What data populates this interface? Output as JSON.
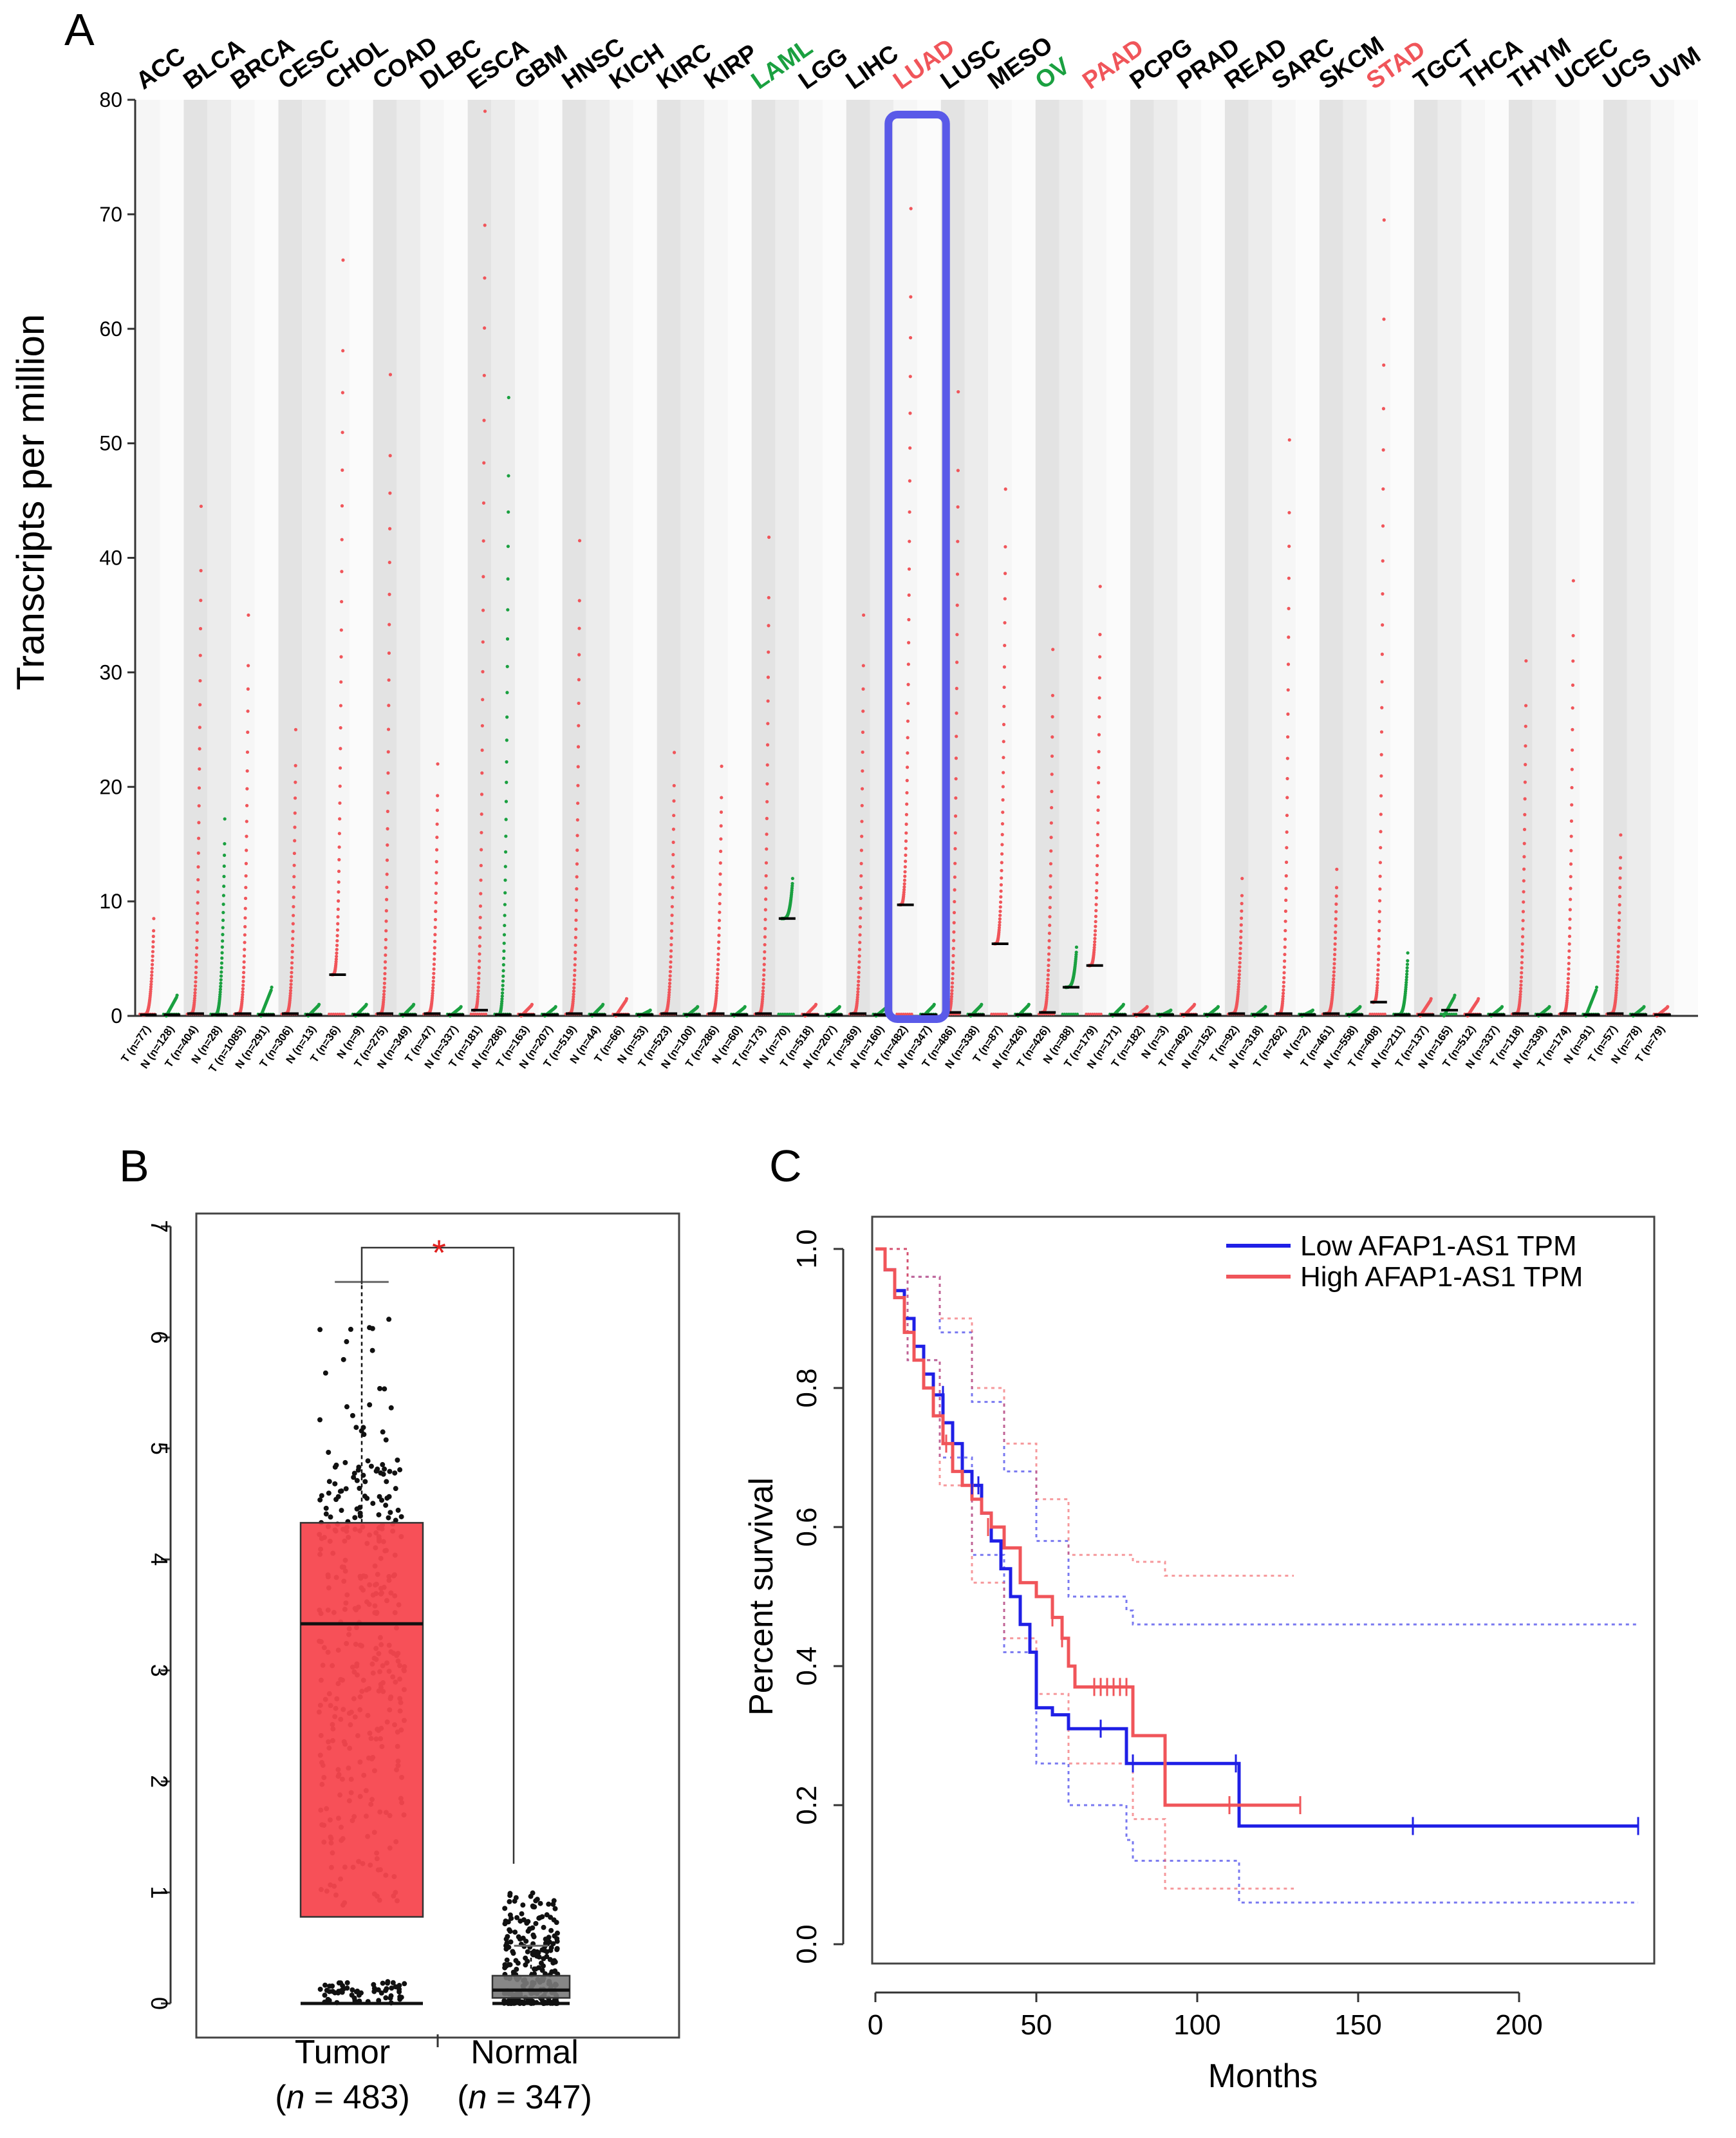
{
  "figure": {
    "panels": [
      {
        "letter": "A"
      },
      {
        "letter": "B"
      },
      {
        "letter": "C"
      }
    ]
  },
  "colors": {
    "red": "#f0555a",
    "green": "#1aa040",
    "blue": "#1f1fe6",
    "highlight": "#5a5ae8",
    "box_red": "#f7474f",
    "box_gray": "#7a7a7a",
    "gray_stripe": "#e3e3e3",
    "light_stripe": "#f6f6f6"
  },
  "chart_data": [
    {
      "panel": "A",
      "type": "scatter",
      "title": "",
      "ylabel": "Transcripts per million",
      "ylim": [
        0,
        80
      ],
      "yticks": [
        0,
        10,
        20,
        30,
        40,
        50,
        60,
        70,
        80
      ],
      "highlighted_cancer": "LUAD",
      "cancers": [
        {
          "name": "ACC",
          "color": "black",
          "groups": [
            "T (n=77)",
            "N (n=128)"
          ],
          "maxT": 8.5,
          "medT": 0.1,
          "maxN": 1.8,
          "medN": 0.1
        },
        {
          "name": "BLCA",
          "color": "black",
          "groups": [
            "T (n=404)",
            "N (n=28)"
          ],
          "maxT": 44.5,
          "medT": 0.2,
          "maxN": 17.2,
          "medN": 0.1
        },
        {
          "name": "BRCA",
          "color": "black",
          "groups": [
            "T (n=1085)",
            "N (n=291)"
          ],
          "maxT": 35.0,
          "medT": 0.2,
          "maxN": 2.5,
          "medN": 0.1
        },
        {
          "name": "CESC",
          "color": "black",
          "groups": [
            "T (n=306)",
            "N (n=13)"
          ],
          "maxT": 25.0,
          "medT": 0.2,
          "maxN": 1.0,
          "medN": 0.1
        },
        {
          "name": "CHOL",
          "color": "black",
          "groups": [
            "T (n=36)",
            "N (n=9)"
          ],
          "maxT": 66.0,
          "medT": 3.6,
          "maxN": 1.0,
          "medN": 0.1
        },
        {
          "name": "COAD",
          "color": "black",
          "groups": [
            "T (n=275)",
            "N (n=349)"
          ],
          "maxT": 56.0,
          "medT": 0.2,
          "maxN": 1.0,
          "medN": 0.1
        },
        {
          "name": "DLBC",
          "color": "black",
          "groups": [
            "T (n=47)",
            "N (n=337)"
          ],
          "maxT": 22.0,
          "medT": 0.2,
          "maxN": 0.8,
          "medN": 0.1
        },
        {
          "name": "ESCA",
          "color": "black",
          "groups": [
            "T (n=181)",
            "N (n=286)"
          ],
          "maxT": 79.0,
          "medT": 0.5,
          "maxN": 54.0,
          "medN": 0.1
        },
        {
          "name": "GBM",
          "color": "black",
          "groups": [
            "T (n=163)",
            "N (n=207)"
          ],
          "maxT": 1.0,
          "medT": 0.1,
          "maxN": 0.8,
          "medN": 0.1
        },
        {
          "name": "HNSC",
          "color": "black",
          "groups": [
            "T (n=519)",
            "N (n=44)"
          ],
          "maxT": 41.5,
          "medT": 0.2,
          "maxN": 1.0,
          "medN": 0.1
        },
        {
          "name": "KICH",
          "color": "black",
          "groups": [
            "T (n=66)",
            "N (n=53)"
          ],
          "maxT": 1.5,
          "medT": 0.1,
          "maxN": 0.5,
          "medN": 0.1
        },
        {
          "name": "KIRC",
          "color": "black",
          "groups": [
            "T (n=523)",
            "N (n=100)"
          ],
          "maxT": 23.0,
          "medT": 0.2,
          "maxN": 0.8,
          "medN": 0.1
        },
        {
          "name": "KIRP",
          "color": "black",
          "groups": [
            "T (n=286)",
            "N (n=60)"
          ],
          "maxT": 21.8,
          "medT": 0.2,
          "maxN": 0.8,
          "medN": 0.1
        },
        {
          "name": "LAML",
          "color": "green",
          "groups": [
            "T (n=173)",
            "N (n=70)"
          ],
          "maxT": 41.8,
          "medT": 0.2,
          "maxN": 12.0,
          "medN": 8.5
        },
        {
          "name": "LGG",
          "color": "black",
          "groups": [
            "T (n=518)",
            "N (n=207)"
          ],
          "maxT": 1.0,
          "medT": 0.1,
          "maxN": 0.8,
          "medN": 0.1
        },
        {
          "name": "LIHC",
          "color": "black",
          "groups": [
            "T (n=369)",
            "N (n=160)"
          ],
          "maxT": 35.0,
          "medT": 0.2,
          "maxN": 0.8,
          "medN": 0.1
        },
        {
          "name": "LUAD",
          "color": "red",
          "groups": [
            "T (n=482)",
            "N (n=347)"
          ],
          "maxT": 70.5,
          "medT": 9.7,
          "maxN": 1.0,
          "medN": 0.1
        },
        {
          "name": "LUSC",
          "color": "black",
          "groups": [
            "T (n=486)",
            "N (n=338)"
          ],
          "maxT": 54.5,
          "medT": 0.3,
          "maxN": 1.0,
          "medN": 0.1
        },
        {
          "name": "MESO",
          "color": "black",
          "groups": [
            "T (n=87)",
            "N (n=426)"
          ],
          "maxT": 46.0,
          "medT": 6.3,
          "maxN": 1.0,
          "medN": 0.1
        },
        {
          "name": "OV",
          "color": "green",
          "groups": [
            "T (n=426)",
            "N (n=88)"
          ],
          "maxT": 32.0,
          "medT": 0.3,
          "maxN": 6.0,
          "medN": 2.5
        },
        {
          "name": "PAAD",
          "color": "red",
          "groups": [
            "T (n=179)",
            "N (n=171)"
          ],
          "maxT": 37.5,
          "medT": 4.4,
          "maxN": 1.0,
          "medN": 0.1
        },
        {
          "name": "PCPG",
          "color": "black",
          "groups": [
            "T (n=182)",
            "N (n=3)"
          ],
          "maxT": 0.8,
          "medT": 0.1,
          "maxN": 0.5,
          "medN": 0.1
        },
        {
          "name": "PRAD",
          "color": "black",
          "groups": [
            "T (n=492)",
            "N (n=152)"
          ],
          "maxT": 1.0,
          "medT": 0.1,
          "maxN": 0.8,
          "medN": 0.1
        },
        {
          "name": "READ",
          "color": "black",
          "groups": [
            "T (n=92)",
            "N (n=318)"
          ],
          "maxT": 12.0,
          "medT": 0.2,
          "maxN": 0.8,
          "medN": 0.1
        },
        {
          "name": "SARC",
          "color": "black",
          "groups": [
            "T (n=262)",
            "N (n=2)"
          ],
          "maxT": 50.3,
          "medT": 0.2,
          "maxN": 0.5,
          "medN": 0.1
        },
        {
          "name": "SKCM",
          "color": "black",
          "groups": [
            "T (n=461)",
            "N (n=558)"
          ],
          "maxT": 12.8,
          "medT": 0.2,
          "maxN": 0.8,
          "medN": 0.1
        },
        {
          "name": "STAD",
          "color": "red",
          "groups": [
            "T (n=408)",
            "N (n=211)"
          ],
          "maxT": 69.5,
          "medT": 1.2,
          "maxN": 5.5,
          "medN": 0.1
        },
        {
          "name": "TGCT",
          "color": "black",
          "groups": [
            "T (n=137)",
            "N (n=165)"
          ],
          "maxT": 1.5,
          "medT": 0.1,
          "maxN": 1.8,
          "medN": 0.5
        },
        {
          "name": "THCA",
          "color": "black",
          "groups": [
            "T (n=512)",
            "N (n=337)"
          ],
          "maxT": 1.5,
          "medT": 0.1,
          "maxN": 0.8,
          "medN": 0.1
        },
        {
          "name": "THYM",
          "color": "black",
          "groups": [
            "T (n=118)",
            "N (n=339)"
          ],
          "maxT": 31.0,
          "medT": 0.2,
          "maxN": 0.8,
          "medN": 0.1
        },
        {
          "name": "UCEC",
          "color": "black",
          "groups": [
            "T (n=174)",
            "N (n=91)"
          ],
          "maxT": 38.0,
          "medT": 0.2,
          "maxN": 2.5,
          "medN": 0.1
        },
        {
          "name": "UCS",
          "color": "black",
          "groups": [
            "T (n=57)",
            "N (n=78)"
          ],
          "maxT": 15.8,
          "medT": 0.2,
          "maxN": 0.8,
          "medN": 0.1
        },
        {
          "name": "UVM",
          "color": "black",
          "groups": [
            "T (n=79)"
          ],
          "maxT": 0.8,
          "medT": 0.1
        }
      ]
    },
    {
      "panel": "B",
      "type": "box",
      "ylim": [
        0,
        7
      ],
      "yticks": [
        "0",
        "1",
        "2",
        "3",
        "4",
        "5",
        "6",
        "7"
      ],
      "significance": "*",
      "groups": [
        {
          "label": "Tumor",
          "n_prefix": "(",
          "n_italic": "n",
          "n_suffix": " = 483)",
          "q1": 0.78,
          "median": 3.42,
          "q3": 4.33,
          "whisker_low": 0.0,
          "whisker_high": 6.5,
          "max_point": 6.5
        },
        {
          "label": "Normal",
          "n_prefix": "(",
          "n_italic": "n",
          "n_suffix": " = 347)",
          "q1": 0.05,
          "median": 0.12,
          "q3": 0.25,
          "whisker_low": 0.0,
          "whisker_high": 0.52,
          "max_point": 1.0
        }
      ]
    },
    {
      "panel": "C",
      "type": "line",
      "xlabel": "Months",
      "ylabel": "Percent survival",
      "xlim": [
        0,
        240
      ],
      "ylim": [
        0,
        1.0
      ],
      "xticks": [
        "0",
        "50",
        "100",
        "150",
        "200"
      ],
      "yticks": [
        "0.0",
        "0.2",
        "0.4",
        "0.6",
        "0.8",
        "1.0"
      ],
      "legend": [
        {
          "label": "Low AFAP1-AS1 TPM",
          "color": "blue"
        },
        {
          "label": "High AFAP1-AS1 TPM",
          "color": "red"
        }
      ],
      "series": [
        {
          "name": "Low AFAP1-AS1 TPM",
          "color": "blue",
          "x": [
            0,
            3,
            6,
            9,
            12,
            15,
            18,
            21,
            24,
            27,
            30,
            33,
            36,
            39,
            42,
            45,
            48,
            50,
            55,
            60,
            78,
            80,
            113,
            120,
            170,
            237
          ],
          "y": [
            1.0,
            0.97,
            0.94,
            0.9,
            0.86,
            0.82,
            0.79,
            0.75,
            0.72,
            0.68,
            0.66,
            0.62,
            0.58,
            0.54,
            0.5,
            0.46,
            0.42,
            0.34,
            0.33,
            0.31,
            0.26,
            0.26,
            0.17,
            0.17,
            0.17,
            0.17
          ],
          "censors": [
            [
              21,
              0.79
            ],
            [
              30,
              0.66
            ],
            [
              32,
              0.66
            ],
            [
              70,
              0.31
            ],
            [
              80,
              0.26
            ],
            [
              112,
              0.26
            ],
            [
              167,
              0.17
            ],
            [
              237,
              0.17
            ]
          ],
          "ci_upper": [
            [
              0,
              1.0
            ],
            [
              10,
              0.96
            ],
            [
              20,
              0.88
            ],
            [
              30,
              0.78
            ],
            [
              40,
              0.68
            ],
            [
              50,
              0.58
            ],
            [
              60,
              0.5
            ],
            [
              78,
              0.48
            ],
            [
              80,
              0.46
            ],
            [
              237,
              0.46
            ]
          ],
          "ci_lower": [
            [
              0,
              1.0
            ],
            [
              10,
              0.84
            ],
            [
              20,
              0.7
            ],
            [
              30,
              0.56
            ],
            [
              40,
              0.42
            ],
            [
              50,
              0.26
            ],
            [
              60,
              0.2
            ],
            [
              78,
              0.15
            ],
            [
              80,
              0.12
            ],
            [
              113,
              0.06
            ],
            [
              237,
              0.06
            ]
          ]
        },
        {
          "name": "High AFAP1-AS1 TPM",
          "color": "red",
          "x": [
            0,
            3,
            6,
            9,
            12,
            15,
            18,
            21,
            24,
            27,
            30,
            33,
            36,
            40,
            45,
            50,
            55,
            58,
            60,
            62,
            70,
            80,
            85,
            90,
            95,
            132
          ],
          "y": [
            1.0,
            0.97,
            0.93,
            0.88,
            0.84,
            0.8,
            0.76,
            0.72,
            0.68,
            0.66,
            0.64,
            0.62,
            0.6,
            0.57,
            0.52,
            0.5,
            0.47,
            0.44,
            0.4,
            0.37,
            0.37,
            0.3,
            0.3,
            0.2,
            0.2,
            0.2
          ],
          "censors": [
            [
              22,
              0.72
            ],
            [
              35,
              0.6
            ],
            [
              55,
              0.47
            ],
            [
              58,
              0.44
            ],
            [
              68,
              0.37
            ],
            [
              70,
              0.37
            ],
            [
              72,
              0.37
            ],
            [
              74,
              0.37
            ],
            [
              76,
              0.37
            ],
            [
              78,
              0.37
            ],
            [
              110,
              0.2
            ],
            [
              132,
              0.2
            ]
          ],
          "ci_upper": [
            [
              0,
              1.0
            ],
            [
              10,
              0.96
            ],
            [
              20,
              0.9
            ],
            [
              30,
              0.8
            ],
            [
              40,
              0.72
            ],
            [
              50,
              0.64
            ],
            [
              60,
              0.56
            ],
            [
              80,
              0.55
            ],
            [
              90,
              0.53
            ],
            [
              130,
              0.53
            ]
          ],
          "ci_lower": [
            [
              0,
              1.0
            ],
            [
              10,
              0.84
            ],
            [
              20,
              0.66
            ],
            [
              30,
              0.52
            ],
            [
              40,
              0.44
            ],
            [
              50,
              0.36
            ],
            [
              60,
              0.26
            ],
            [
              80,
              0.18
            ],
            [
              90,
              0.08
            ],
            [
              130,
              0.08
            ]
          ]
        }
      ]
    }
  ]
}
